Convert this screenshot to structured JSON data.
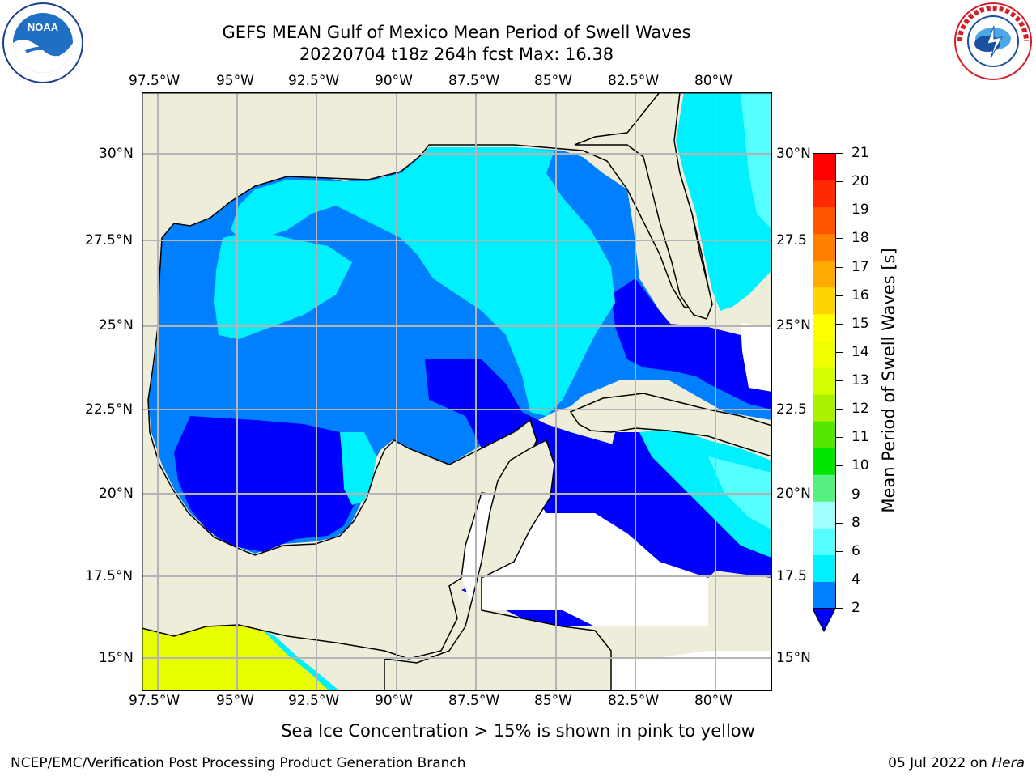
{
  "title": {
    "line1": "GEFS MEAN Gulf of Mexico Mean Period of Swell Waves",
    "line2": "20220704 t18z 264h fcst   Max: 16.38"
  },
  "map": {
    "lon_labels": [
      "97.5°W",
      "95°W",
      "92.5°W",
      "90°W",
      "87.5°W",
      "85°W",
      "82.5°W",
      "80°W"
    ],
    "lat_labels_left": [
      "30°N",
      "27.5°N",
      "25°N",
      "22.5°N",
      "20°N",
      "17.5°N",
      "15°N"
    ],
    "lat_labels_right": [
      "30°N",
      "27.5",
      "25°N",
      "22.5",
      "20°N",
      "17.5",
      "15°N"
    ],
    "colors": {
      "land": "#eeedda",
      "no_data": "#ffffff",
      "coast": "#000000",
      "grid": "#b4b4b4"
    }
  },
  "colorbar": {
    "title": "Mean Period of Swell Waves [s]",
    "labels": [
      "21",
      "20",
      "19",
      "18",
      "17",
      "16",
      "15",
      "14",
      "13",
      "12",
      "11",
      "10",
      "9",
      "8",
      "6",
      "4",
      "2"
    ],
    "colors": [
      "#ff0000",
      "#ff2a00",
      "#ff5500",
      "#ff8000",
      "#ffaa00",
      "#ffd400",
      "#ffff00",
      "#f0ff00",
      "#d4ff00",
      "#aaf000",
      "#55e600",
      "#00e600",
      "#55f080",
      "#a0ffff",
      "#55ffff",
      "#00f0ff",
      "#0080ff"
    ],
    "extend_color": "#0000ff"
  },
  "note": "Sea Ice Concentration > 15% is shown in pink to yellow",
  "footer": {
    "credit": "NCEP/EMC/Verification Post Processing Product Generation Branch",
    "date": "05 Jul 2022 on",
    "machine": "Hera"
  },
  "logos": {
    "noaa_text": "NOAA",
    "nws_text": "NATIONAL WEATHER SERVICE"
  }
}
